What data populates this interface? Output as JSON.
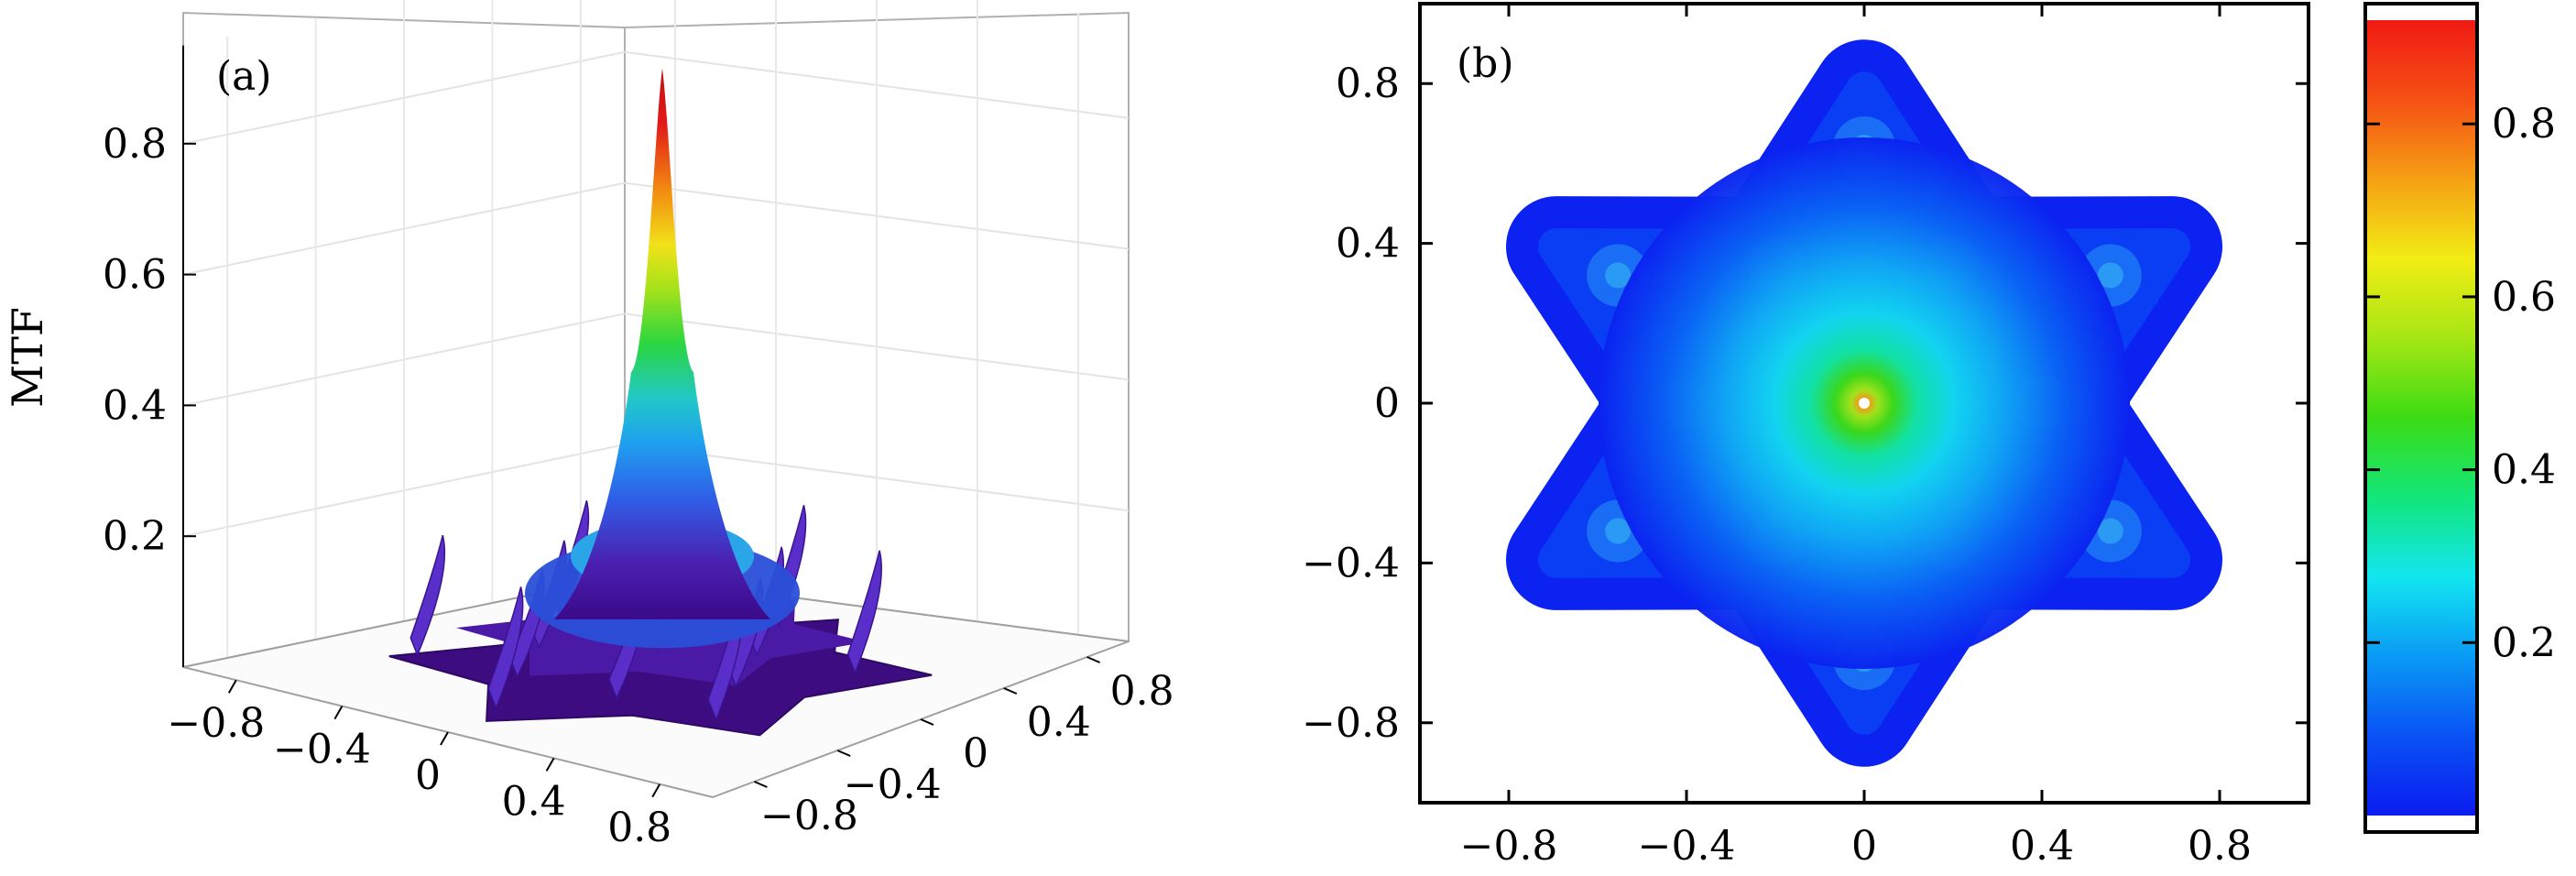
{
  "chart_data": [
    {
      "type": "surface3d",
      "panel_label": "(a)",
      "zlabel": "MTF",
      "z_ticks": [
        {
          "value": 0.2,
          "label": "0.2"
        },
        {
          "value": 0.4,
          "label": "0.4"
        },
        {
          "value": 0.6,
          "label": "0.6"
        },
        {
          "value": 0.8,
          "label": "0.8"
        }
      ],
      "x_ticks": [
        {
          "value": -0.8,
          "label": "−0.8"
        },
        {
          "value": -0.4,
          "label": "−0.4"
        },
        {
          "value": 0,
          "label": "0"
        },
        {
          "value": 0.4,
          "label": "0.4"
        },
        {
          "value": 0.8,
          "label": "0.8"
        }
      ],
      "y_ticks": [
        {
          "value": -0.8,
          "label": "−0.8"
        },
        {
          "value": -0.4,
          "label": "−0.4"
        },
        {
          "value": 0,
          "label": "0"
        },
        {
          "value": 0.4,
          "label": "0.4"
        },
        {
          "value": 0.8,
          "label": "0.8"
        }
      ],
      "zlim": [
        0,
        0.95
      ],
      "xlim": [
        -1,
        1
      ],
      "ylim": [
        -1,
        1
      ],
      "peak": {
        "x": 0,
        "y": 0,
        "z": 0.92
      },
      "grid": true,
      "colormap": [
        "#3a0a8a",
        "#4b1fb0",
        "#2f5fe8",
        "#1fa0ee",
        "#22c8c8",
        "#2ad640",
        "#a6e21a",
        "#f2e21a",
        "#f28a10",
        "#e21818"
      ]
    },
    {
      "type": "heatmap",
      "panel_label": "(b)",
      "x_ticks": [
        {
          "value": -0.8,
          "label": "−0.8"
        },
        {
          "value": -0.4,
          "label": "−0.4"
        },
        {
          "value": 0,
          "label": "0"
        },
        {
          "value": 0.4,
          "label": "0.4"
        },
        {
          "value": 0.8,
          "label": "0.8"
        }
      ],
      "y_ticks": [
        {
          "value": -0.8,
          "label": "−0.8"
        },
        {
          "value": -0.4,
          "label": "−0.4"
        },
        {
          "value": 0,
          "label": "0"
        },
        {
          "value": 0.4,
          "label": "0.4"
        },
        {
          "value": 0.8,
          "label": "0.8"
        }
      ],
      "xlim": [
        -1,
        1
      ],
      "ylim": [
        -1,
        1
      ],
      "peak": {
        "x": 0,
        "y": 0,
        "z": 0.92
      },
      "colorbar": {
        "range": [
          0,
          0.92
        ],
        "ticks": [
          {
            "value": 0.2,
            "label": "0.2"
          },
          {
            "value": 0.4,
            "label": "0.4"
          },
          {
            "value": 0.6,
            "label": "0.6"
          },
          {
            "value": 0.8,
            "label": "0.8"
          }
        ],
        "colors": [
          "#0b1cf0",
          "#0a52f5",
          "#0a9af5",
          "#12e6f0",
          "#12e67a",
          "#3cdc14",
          "#a6e614",
          "#f2ec14",
          "#f5a014",
          "#f55014",
          "#f01a14"
        ]
      }
    }
  ]
}
